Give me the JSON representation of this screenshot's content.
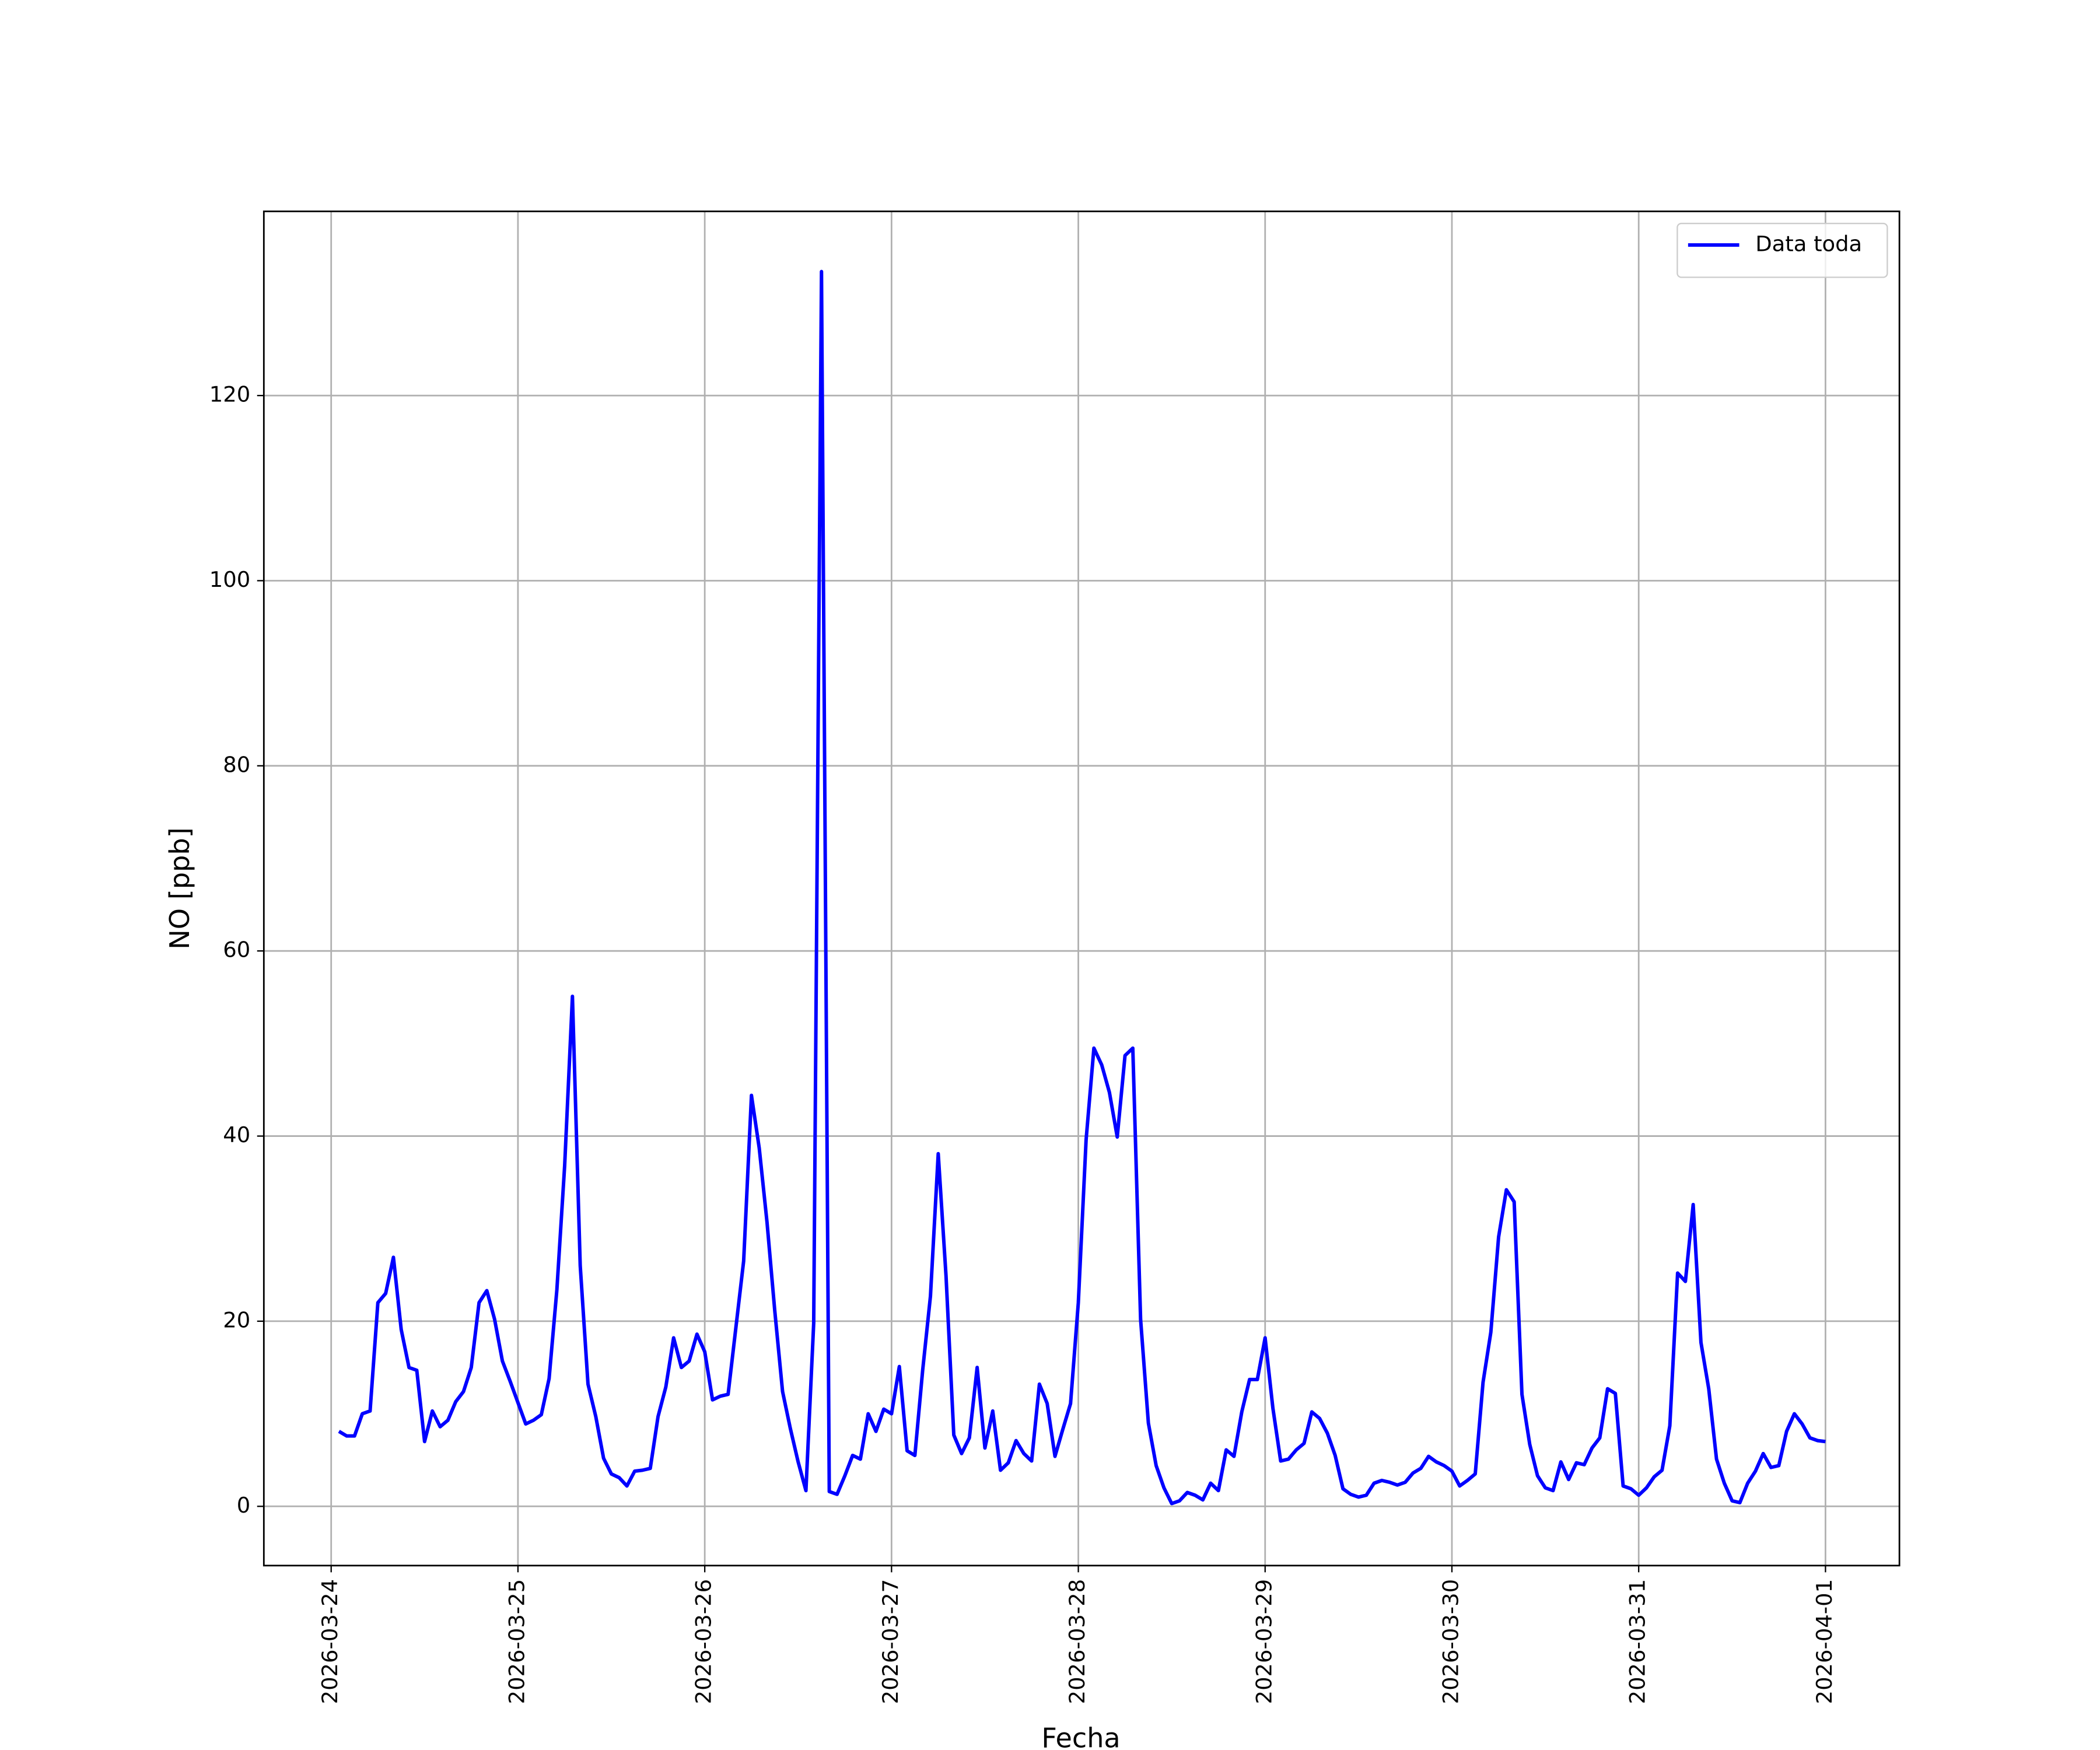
{
  "chart_data": {
    "type": "line",
    "xlabel": "Fecha",
    "ylabel": "NO [ppb]",
    "x": [
      "2026-03-24 01:00",
      "2026-03-24 02:00",
      "2026-03-24 03:00",
      "2026-03-24 04:00",
      "2026-03-24 05:00",
      "2026-03-24 06:00",
      "2026-03-24 07:00",
      "2026-03-24 08:00",
      "2026-03-24 09:00",
      "2026-03-24 10:00",
      "2026-03-24 11:00",
      "2026-03-24 12:00",
      "2026-03-24 13:00",
      "2026-03-24 14:00",
      "2026-03-24 15:00",
      "2026-03-24 16:00",
      "2026-03-24 17:00",
      "2026-03-24 18:00",
      "2026-03-24 19:00",
      "2026-03-24 20:00",
      "2026-03-24 21:00",
      "2026-03-24 22:00",
      "2026-03-24 23:00",
      "2026-03-25 00:00",
      "2026-03-25 01:00",
      "2026-03-25 02:00",
      "2026-03-25 03:00",
      "2026-03-25 04:00",
      "2026-03-25 05:00",
      "2026-03-25 06:00",
      "2026-03-25 07:00",
      "2026-03-25 08:00",
      "2026-03-25 09:00",
      "2026-03-25 10:00",
      "2026-03-25 11:00",
      "2026-03-25 12:00",
      "2026-03-25 13:00",
      "2026-03-25 14:00",
      "2026-03-25 15:00",
      "2026-03-25 16:00",
      "2026-03-25 17:00",
      "2026-03-25 18:00",
      "2026-03-25 19:00",
      "2026-03-25 20:00",
      "2026-03-25 21:00",
      "2026-03-25 22:00",
      "2026-03-25 23:00",
      "2026-03-26 00:00",
      "2026-03-26 01:00",
      "2026-03-26 02:00",
      "2026-03-26 03:00",
      "2026-03-26 04:00",
      "2026-03-26 05:00",
      "2026-03-26 06:00",
      "2026-03-26 07:00",
      "2026-03-26 08:00",
      "2026-03-26 09:00",
      "2026-03-26 10:00",
      "2026-03-26 11:00",
      "2026-03-26 12:00",
      "2026-03-26 13:00",
      "2026-03-26 14:00",
      "2026-03-26 15:00",
      "2026-03-26 16:00",
      "2026-03-26 17:00",
      "2026-03-26 18:00",
      "2026-03-26 19:00",
      "2026-03-26 20:00",
      "2026-03-26 21:00",
      "2026-03-26 22:00",
      "2026-03-26 23:00",
      "2026-03-27 00:00",
      "2026-03-27 01:00",
      "2026-03-27 02:00",
      "2026-03-27 03:00",
      "2026-03-27 04:00",
      "2026-03-27 05:00",
      "2026-03-27 06:00",
      "2026-03-27 07:00",
      "2026-03-27 08:00",
      "2026-03-27 09:00",
      "2026-03-27 10:00",
      "2026-03-27 11:00",
      "2026-03-27 12:00",
      "2026-03-27 13:00",
      "2026-03-27 14:00",
      "2026-03-27 15:00",
      "2026-03-27 16:00",
      "2026-03-27 17:00",
      "2026-03-27 18:00",
      "2026-03-27 19:00",
      "2026-03-27 20:00",
      "2026-03-27 21:00",
      "2026-03-27 22:00",
      "2026-03-27 23:00",
      "2026-03-28 00:00",
      "2026-03-28 01:00",
      "2026-03-28 02:00",
      "2026-03-28 03:00",
      "2026-03-28 04:00",
      "2026-03-28 05:00",
      "2026-03-28 06:00",
      "2026-03-28 07:00",
      "2026-03-28 08:00",
      "2026-03-28 09:00",
      "2026-03-28 10:00",
      "2026-03-28 11:00",
      "2026-03-28 12:00",
      "2026-03-28 13:00",
      "2026-03-28 14:00",
      "2026-03-28 15:00",
      "2026-03-28 16:00",
      "2026-03-28 17:00",
      "2026-03-28 18:00",
      "2026-03-28 19:00",
      "2026-03-28 20:00",
      "2026-03-28 21:00",
      "2026-03-28 22:00",
      "2026-03-28 23:00",
      "2026-03-29 00:00",
      "2026-03-29 01:00",
      "2026-03-29 02:00",
      "2026-03-29 03:00",
      "2026-03-29 04:00",
      "2026-03-29 05:00",
      "2026-03-29 06:00",
      "2026-03-29 07:00",
      "2026-03-29 08:00",
      "2026-03-29 09:00",
      "2026-03-29 10:00",
      "2026-03-29 11:00",
      "2026-03-29 12:00",
      "2026-03-29 13:00",
      "2026-03-29 14:00",
      "2026-03-29 15:00",
      "2026-03-29 16:00",
      "2026-03-29 17:00",
      "2026-03-29 18:00",
      "2026-03-29 19:00",
      "2026-03-29 20:00",
      "2026-03-29 21:00",
      "2026-03-29 22:00",
      "2026-03-29 23:00",
      "2026-03-30 00:00",
      "2026-03-30 01:00",
      "2026-03-30 02:00",
      "2026-03-30 03:00",
      "2026-03-30 04:00",
      "2026-03-30 05:00",
      "2026-03-30 06:00",
      "2026-03-30 07:00",
      "2026-03-30 08:00",
      "2026-03-30 09:00",
      "2026-03-30 10:00",
      "2026-03-30 11:00",
      "2026-03-30 12:00",
      "2026-03-30 13:00",
      "2026-03-30 14:00",
      "2026-03-30 15:00",
      "2026-03-30 16:00",
      "2026-03-30 17:00",
      "2026-03-30 18:00",
      "2026-03-30 19:00",
      "2026-03-30 20:00",
      "2026-03-30 21:00",
      "2026-03-30 22:00",
      "2026-03-30 23:00",
      "2026-03-31 00:00",
      "2026-03-31 01:00",
      "2026-03-31 02:00",
      "2026-03-31 03:00",
      "2026-03-31 04:00",
      "2026-03-31 05:00",
      "2026-03-31 06:00",
      "2026-03-31 07:00",
      "2026-03-31 08:00",
      "2026-03-31 09:00",
      "2026-03-31 10:00",
      "2026-03-31 11:00",
      "2026-03-31 12:00",
      "2026-03-31 13:00",
      "2026-03-31 14:00",
      "2026-03-31 15:00",
      "2026-03-31 16:00",
      "2026-03-31 17:00",
      "2026-03-31 18:00",
      "2026-03-31 19:00",
      "2026-03-31 20:00",
      "2026-03-31 21:00",
      "2026-03-31 22:00",
      "2026-03-31 23:00",
      "2026-04-01 00:00"
    ],
    "series": [
      {
        "name": "Data toda",
        "color": "#0000ff",
        "values": [
          8.1,
          7.6,
          7.6,
          10.0,
          10.3,
          22.0,
          23.0,
          26.9,
          19.1,
          15.0,
          14.7,
          7.0,
          10.3,
          8.6,
          9.3,
          11.3,
          12.4,
          15.0,
          22.0,
          23.3,
          20.2,
          15.7,
          13.5,
          11.2,
          8.9,
          9.3,
          9.9,
          13.8,
          23.4,
          36.8,
          55.1,
          26.0,
          13.2,
          9.7,
          5.2,
          3.5,
          3.1,
          2.2,
          3.8,
          3.9,
          4.1,
          9.7,
          12.9,
          18.2,
          15.0,
          15.7,
          18.6,
          16.7,
          11.5,
          11.9,
          12.1,
          19.3,
          26.5,
          44.4,
          38.7,
          30.7,
          21.1,
          12.4,
          8.4,
          4.8,
          1.7,
          19.8,
          133.4,
          1.6,
          1.3,
          3.3,
          5.5,
          5.1,
          10.0,
          8.1,
          10.5,
          10.0,
          15.1,
          6.0,
          5.5,
          14.7,
          22.7,
          38.1,
          24.9,
          7.7,
          5.7,
          7.4,
          15.0,
          6.3,
          10.3,
          3.9,
          4.7,
          7.1,
          5.7,
          4.9,
          13.2,
          11.1,
          5.4,
          8.3,
          11.1,
          22.0,
          39.6,
          49.5,
          47.7,
          44.7,
          39.9,
          48.7,
          49.5,
          20.2,
          9.0,
          4.4,
          2.0,
          0.3,
          0.6,
          1.5,
          1.2,
          0.7,
          2.5,
          1.7,
          6.1,
          5.4,
          10.2,
          13.7,
          13.7,
          18.2,
          10.6,
          4.9,
          5.1,
          6.1,
          6.8,
          10.2,
          9.5,
          7.9,
          5.5,
          1.9,
          1.3,
          1.0,
          1.2,
          2.5,
          2.8,
          2.6,
          2.3,
          2.6,
          3.6,
          4.1,
          5.4,
          4.8,
          4.4,
          3.8,
          2.2,
          2.8,
          3.5,
          13.4,
          18.8,
          29.1,
          34.2,
          32.9,
          12.1,
          6.7,
          3.3,
          2.0,
          1.7,
          4.8,
          2.9,
          4.7,
          4.5,
          6.3,
          7.4,
          12.7,
          12.2,
          2.2,
          1.9,
          1.2,
          2.0,
          3.2,
          3.9,
          8.7,
          25.2,
          24.3,
          32.6,
          17.7,
          12.7,
          5.1,
          2.5,
          0.6,
          0.4,
          2.5,
          3.8,
          5.7,
          4.2,
          4.4,
          8.1,
          10.0,
          8.9,
          7.4,
          7.1,
          7.0
        ]
      }
    ],
    "xlim": [
      "2026-03-23 15:21",
      "2026-04-01 09:30"
    ],
    "xticks": [
      "2026-03-24",
      "2026-03-25",
      "2026-03-26",
      "2026-03-27",
      "2026-03-28",
      "2026-03-29",
      "2026-03-30",
      "2026-03-31",
      "2026-04-01"
    ],
    "ylim": [
      -6.4,
      139.9
    ],
    "yticks": [
      0,
      20,
      40,
      60,
      80,
      100,
      120
    ],
    "grid": true,
    "legend": "upper right"
  }
}
